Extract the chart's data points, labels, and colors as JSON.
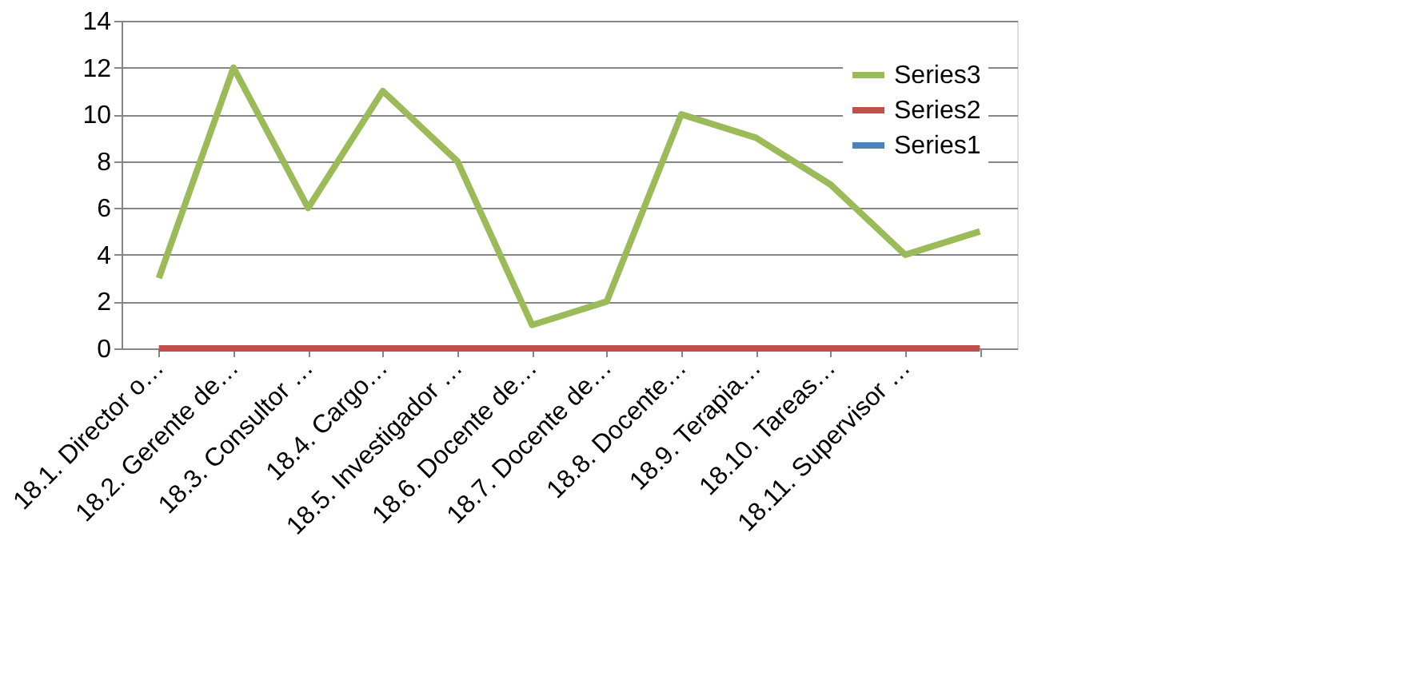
{
  "chart_data": {
    "type": "line",
    "categories": [
      "18.1. Director o…",
      "18.2. Gerente de…",
      "18.3. Consultor …",
      "18.4. Cargo…",
      "18.5. Investigador …",
      "18.6. Docente de…",
      "18.7. Docente de…",
      "18.8. Docente…",
      "18.9. Terapia…",
      "18.10. Tareas…",
      "18.11. Supervisor …",
      null
    ],
    "series": [
      {
        "name": "Series3",
        "color": "#9bbb59",
        "values": [
          3,
          12,
          6,
          11,
          8,
          1,
          2,
          10,
          9,
          7,
          4,
          5
        ]
      },
      {
        "name": "Series2",
        "color": "#c0504d",
        "values": [
          0,
          0,
          0,
          0,
          0,
          0,
          0,
          0,
          0,
          0,
          0,
          0
        ]
      },
      {
        "name": "Series1",
        "color": "#4f81bd",
        "values": [
          null,
          null,
          null,
          null,
          null,
          null,
          null,
          null,
          null,
          null,
          null,
          null
        ]
      }
    ],
    "ylim": [
      0,
      14
    ],
    "yticks": [
      0,
      2,
      4,
      6,
      8,
      10,
      12,
      14
    ],
    "grid": "y",
    "legend": "top right",
    "line_style": "solid",
    "marker": "none"
  }
}
